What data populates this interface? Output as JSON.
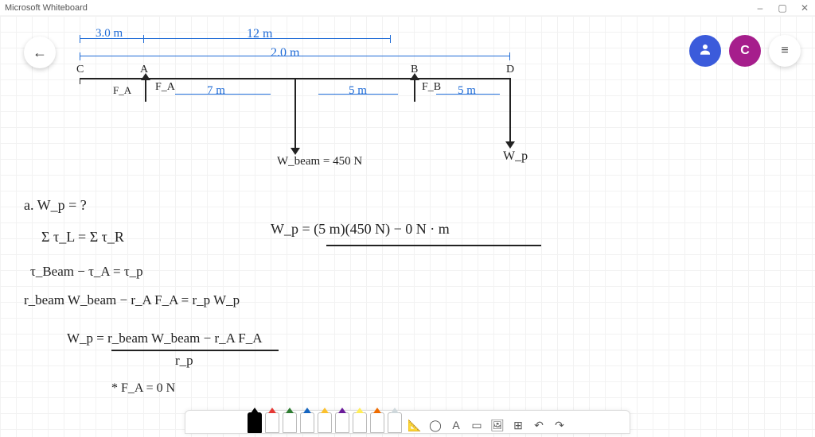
{
  "window": {
    "title": "Microsoft Whiteboard",
    "min": "–",
    "max": "▢",
    "close": "✕"
  },
  "controls": {
    "back": "←",
    "person": "👤",
    "avatar_initial": "C",
    "menu": "≡"
  },
  "dimensions": {
    "d1": "3.0 m",
    "d2": "12 m",
    "d3": "2.0 m",
    "span1": "7 m",
    "span2": "5 m",
    "span3": "5 m"
  },
  "labels": {
    "C": "C",
    "A": "A",
    "B": "B",
    "D": "D",
    "Fa_left": "F_A",
    "Fa": "F_A",
    "Fb": "F_B",
    "Wbeam": "W_beam = 450 N",
    "Wp": "W_p"
  },
  "work": {
    "qa": "a.   W_p  = ?",
    "eq1": "Σ τ_L  =  Σ τ_R",
    "eq2": "τ_Beam  −  τ_A  =  τ_p",
    "eq3": "r_beam W_beam  −  r_A F_A  =  r_p W_p",
    "frac_num": "W_p  =   r_beam W_beam  −  r_A F_A",
    "frac_den": "r_p",
    "note": "* F_A = 0 N",
    "right_eq": "W_p  =  (5 m)(450 N)   −   0 N · m"
  },
  "toolbar": {
    "tool_lasso": "◯",
    "tool_text": "A",
    "tool_note": "▭",
    "tool_image": "🖼",
    "tool_add": "⊞",
    "tool_undo": "↶",
    "tool_redo": "↷"
  },
  "pens": [
    {
      "color": "#000000",
      "filled": true
    },
    {
      "color": "#e53935",
      "filled": false
    },
    {
      "color": "#2e7d32",
      "filled": false
    },
    {
      "color": "#1565c0",
      "filled": false
    },
    {
      "color": "#fbc02d",
      "filled": false
    },
    {
      "color": "#6a1b9a",
      "filled": false
    },
    {
      "color": "#ffee58",
      "filled": false
    },
    {
      "color": "#ef6c00",
      "filled": false
    },
    {
      "color": "#cfd8dc",
      "filled": false
    }
  ],
  "colors": {
    "ink": "#222222",
    "blue_ink": "#1f6bd6",
    "grid": "#f2f2f2"
  }
}
